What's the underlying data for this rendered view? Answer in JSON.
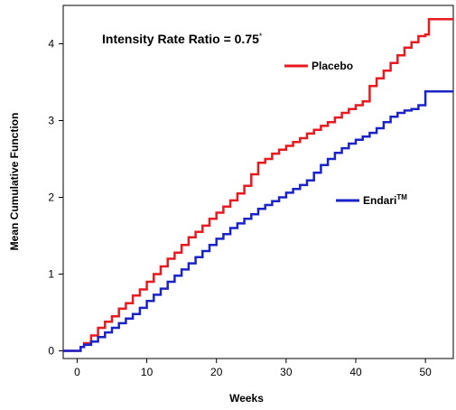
{
  "chart_data": {
    "type": "line",
    "step": true,
    "title": "",
    "xlabel": "Weeks",
    "ylabel": "Mean Cumulative Function",
    "xlim": [
      -2,
      54
    ],
    "ylim": [
      -0.1,
      4.5
    ],
    "xticks": [
      0,
      10,
      20,
      30,
      40,
      50
    ],
    "yticks": [
      0,
      1,
      2,
      3,
      4
    ],
    "grid": false,
    "annotation": {
      "text": "Intensity Rate Ratio = 0.75",
      "superscript": "*"
    },
    "series": [
      {
        "name": "Placebo",
        "color": "#e8191f",
        "legend": {
          "label": "Placebo",
          "suffix": ""
        },
        "points": [
          [
            -2,
            0
          ],
          [
            0,
            0
          ],
          [
            0.5,
            0.05
          ],
          [
            1,
            0.1
          ],
          [
            2,
            0.2
          ],
          [
            3,
            0.3
          ],
          [
            4,
            0.38
          ],
          [
            5,
            0.45
          ],
          [
            6,
            0.55
          ],
          [
            7,
            0.62
          ],
          [
            8,
            0.72
          ],
          [
            9,
            0.8
          ],
          [
            10,
            0.9
          ],
          [
            11,
            1.0
          ],
          [
            12,
            1.1
          ],
          [
            13,
            1.2
          ],
          [
            14,
            1.28
          ],
          [
            15,
            1.38
          ],
          [
            16,
            1.48
          ],
          [
            17,
            1.55
          ],
          [
            18,
            1.63
          ],
          [
            19,
            1.72
          ],
          [
            20,
            1.8
          ],
          [
            21,
            1.88
          ],
          [
            22,
            1.96
          ],
          [
            23,
            2.05
          ],
          [
            24,
            2.15
          ],
          [
            25,
            2.3
          ],
          [
            26,
            2.45
          ],
          [
            27,
            2.5
          ],
          [
            28,
            2.57
          ],
          [
            29,
            2.62
          ],
          [
            30,
            2.67
          ],
          [
            31,
            2.72
          ],
          [
            32,
            2.77
          ],
          [
            33,
            2.83
          ],
          [
            34,
            2.88
          ],
          [
            35,
            2.93
          ],
          [
            36,
            2.98
          ],
          [
            37,
            3.04
          ],
          [
            38,
            3.1
          ],
          [
            39,
            3.15
          ],
          [
            40,
            3.2
          ],
          [
            41,
            3.25
          ],
          [
            42,
            3.45
          ],
          [
            43,
            3.55
          ],
          [
            44,
            3.65
          ],
          [
            45,
            3.75
          ],
          [
            46,
            3.85
          ],
          [
            47,
            3.95
          ],
          [
            48,
            4.02
          ],
          [
            49,
            4.1
          ],
          [
            50,
            4.12
          ],
          [
            50.5,
            4.32
          ],
          [
            54,
            4.32
          ]
        ]
      },
      {
        "name": "Endari",
        "color": "#1a23c8",
        "legend": {
          "label": "Endari",
          "suffix": "TM"
        },
        "points": [
          [
            -2,
            0
          ],
          [
            0,
            0
          ],
          [
            0.5,
            0.05
          ],
          [
            1,
            0.08
          ],
          [
            2,
            0.12
          ],
          [
            3,
            0.18
          ],
          [
            4,
            0.24
          ],
          [
            5,
            0.3
          ],
          [
            6,
            0.36
          ],
          [
            7,
            0.42
          ],
          [
            8,
            0.48
          ],
          [
            9,
            0.56
          ],
          [
            10,
            0.65
          ],
          [
            11,
            0.73
          ],
          [
            12,
            0.81
          ],
          [
            13,
            0.9
          ],
          [
            14,
            0.98
          ],
          [
            15,
            1.06
          ],
          [
            16,
            1.14
          ],
          [
            17,
            1.22
          ],
          [
            18,
            1.3
          ],
          [
            19,
            1.38
          ],
          [
            20,
            1.46
          ],
          [
            21,
            1.52
          ],
          [
            22,
            1.6
          ],
          [
            23,
            1.66
          ],
          [
            24,
            1.72
          ],
          [
            25,
            1.78
          ],
          [
            26,
            1.85
          ],
          [
            27,
            1.9
          ],
          [
            28,
            1.95
          ],
          [
            29,
            2.0
          ],
          [
            30,
            2.06
          ],
          [
            31,
            2.11
          ],
          [
            32,
            2.16
          ],
          [
            33,
            2.22
          ],
          [
            34,
            2.32
          ],
          [
            35,
            2.42
          ],
          [
            36,
            2.5
          ],
          [
            37,
            2.58
          ],
          [
            38,
            2.64
          ],
          [
            39,
            2.7
          ],
          [
            40,
            2.75
          ],
          [
            41,
            2.79
          ],
          [
            42,
            2.84
          ],
          [
            43,
            2.9
          ],
          [
            44,
            2.98
          ],
          [
            45,
            3.05
          ],
          [
            46,
            3.1
          ],
          [
            47,
            3.13
          ],
          [
            48,
            3.15
          ],
          [
            49,
            3.2
          ],
          [
            50,
            3.38
          ],
          [
            54,
            3.38
          ]
        ]
      }
    ]
  }
}
